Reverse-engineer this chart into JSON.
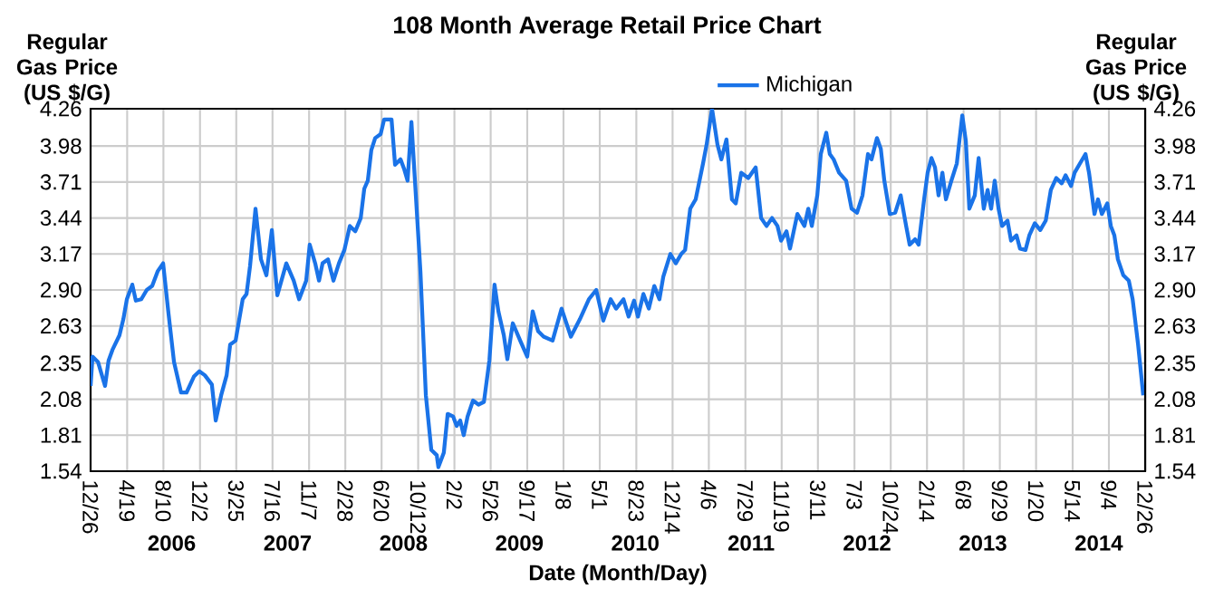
{
  "chart_data": {
    "type": "line",
    "title": "108 Month Average Retail Price Chart",
    "xlabel": "Date (Month/Day)",
    "ylabel": "Regular Gas Price (US $/G)",
    "y2label": "Regular Gas Price (US $/G)",
    "xlim": [
      "2005-12-26",
      "2014-12-26"
    ],
    "xticks": [
      {
        "value": "2005-12-26",
        "label": "12/26"
      },
      {
        "value": "2006-04-19",
        "label": "4/19"
      },
      {
        "value": "2006-08-10",
        "label": "8/10"
      },
      {
        "value": "2006-12-02",
        "label": "12/2"
      },
      {
        "value": "2007-03-25",
        "label": "3/25"
      },
      {
        "value": "2007-07-16",
        "label": "7/16"
      },
      {
        "value": "2007-11-07",
        "label": "11/7"
      },
      {
        "value": "2008-02-28",
        "label": "2/28"
      },
      {
        "value": "2008-06-20",
        "label": "6/20"
      },
      {
        "value": "2008-10-12",
        "label": "10/12"
      },
      {
        "value": "2009-02-02",
        "label": "2/2"
      },
      {
        "value": "2009-05-26",
        "label": "5/26"
      },
      {
        "value": "2009-09-17",
        "label": "9/17"
      },
      {
        "value": "2010-01-08",
        "label": "1/8"
      },
      {
        "value": "2010-05-01",
        "label": "5/1"
      },
      {
        "value": "2010-08-23",
        "label": "8/23"
      },
      {
        "value": "2010-12-14",
        "label": "12/14"
      },
      {
        "value": "2011-04-06",
        "label": "4/6"
      },
      {
        "value": "2011-07-29",
        "label": "7/29"
      },
      {
        "value": "2011-11-19",
        "label": "11/19"
      },
      {
        "value": "2012-03-11",
        "label": "3/11"
      },
      {
        "value": "2012-07-03",
        "label": "7/3"
      },
      {
        "value": "2012-10-24",
        "label": "10/24"
      },
      {
        "value": "2013-02-14",
        "label": "2/14"
      },
      {
        "value": "2013-06-08",
        "label": "6/8"
      },
      {
        "value": "2013-09-29",
        "label": "9/29"
      },
      {
        "value": "2014-01-20",
        "label": "1/20"
      },
      {
        "value": "2014-05-14",
        "label": "5/14"
      },
      {
        "value": "2014-09-04",
        "label": "9/4"
      },
      {
        "value": "2014-12-26",
        "label": "12/26"
      }
    ],
    "ylim": [
      1.54,
      4.26
    ],
    "yticks": [
      1.54,
      1.81,
      2.08,
      2.35,
      2.63,
      {
        "value": 2.9,
        "label": "2.90"
      },
      3.17,
      3.44,
      3.71,
      3.98,
      4.26
    ],
    "y2lim": [
      1.54,
      4.26
    ],
    "y2ticks": [
      1.54,
      1.81,
      2.08,
      2.35,
      2.63,
      {
        "value": 2.9,
        "label": "2.90"
      },
      3.17,
      3.44,
      3.71,
      3.98,
      4.26
    ],
    "annotations": [
      "2006",
      "2007",
      "2008",
      "2009",
      "2010",
      "2011",
      "2012",
      "2013",
      "2014"
    ],
    "grid": true,
    "legend": "top",
    "marker": "none",
    "line_style": "solid",
    "x": [
      "2005-12-26",
      "2006-01-01",
      "2006-01-18",
      "2006-02-09",
      "2006-02-20",
      "2006-03-04",
      "2006-03-26",
      "2006-04-07",
      "2006-04-18",
      "2006-05-05",
      "2006-05-16",
      "2006-06-02",
      "2006-06-19",
      "2006-07-06",
      "2006-07-23",
      "2006-08-09",
      "2006-08-26",
      "2006-09-12",
      "2006-10-04",
      "2006-10-21",
      "2006-11-13",
      "2006-11-30",
      "2006-12-17",
      "2007-01-08",
      "2007-01-20",
      "2007-02-06",
      "2007-02-23",
      "2007-03-06",
      "2007-03-23",
      "2007-04-14",
      "2007-04-26",
      "2007-05-07",
      "2007-05-24",
      "2007-06-10",
      "2007-06-27",
      "2007-07-14",
      "2007-07-31",
      "2007-08-28",
      "2007-09-20",
      "2007-10-07",
      "2007-10-29",
      "2007-11-09",
      "2007-11-26",
      "2007-12-08",
      "2007-12-19",
      "2008-01-05",
      "2008-01-22",
      "2008-02-08",
      "2008-02-25",
      "2008-03-13",
      "2008-03-30",
      "2008-04-16",
      "2008-04-27",
      "2008-05-08",
      "2008-05-19",
      "2008-05-31",
      "2008-06-17",
      "2008-06-28",
      "2008-07-21",
      "2008-08-01",
      "2008-08-18",
      "2008-08-29",
      "2008-09-09",
      "2008-09-21",
      "2008-10-02",
      "2008-10-19",
      "2008-11-05",
      "2008-11-22",
      "2008-12-09",
      "2008-12-14",
      "2008-12-31",
      "2009-01-12",
      "2009-01-29",
      "2009-02-09",
      "2009-02-20",
      "2009-03-03",
      "2009-03-15",
      "2009-04-01",
      "2009-04-18",
      "2009-05-05",
      "2009-05-22",
      "2009-06-07",
      "2009-06-19",
      "2009-07-06",
      "2009-07-17",
      "2009-08-03",
      "2009-08-26",
      "2009-09-17",
      "2009-10-04",
      "2009-10-21",
      "2009-11-07",
      "2009-12-05",
      "2010-01-02",
      "2010-01-31",
      "2010-02-28",
      "2010-03-28",
      "2010-04-20",
      "2010-05-12",
      "2010-06-04",
      "2010-06-21",
      "2010-07-14",
      "2010-07-30",
      "2010-08-16",
      "2010-08-28",
      "2010-09-14",
      "2010-10-01",
      "2010-10-18",
      "2010-11-03",
      "2010-11-15",
      "2010-12-07",
      "2010-12-24",
      "2011-01-10",
      "2011-01-22",
      "2011-02-07",
      "2011-02-24",
      "2011-03-19",
      "2011-03-30",
      "2011-04-16",
      "2011-05-03",
      "2011-05-15",
      "2011-05-31",
      "2011-06-17",
      "2011-06-29",
      "2011-07-16",
      "2011-08-07",
      "2011-08-30",
      "2011-09-16",
      "2011-10-03",
      "2011-10-20",
      "2011-11-06",
      "2011-11-17",
      "2011-12-04",
      "2011-12-15",
      "2012-01-07",
      "2012-01-29",
      "2012-02-10",
      "2012-02-21",
      "2012-03-09",
      "2012-03-20",
      "2012-04-06",
      "2012-04-17",
      "2012-04-29",
      "2012-05-16",
      "2012-06-07",
      "2012-06-24",
      "2012-07-11",
      "2012-07-28",
      "2012-08-14",
      "2012-08-25",
      "2012-09-11",
      "2012-09-23",
      "2012-10-04",
      "2012-10-21",
      "2012-11-07",
      "2012-11-24",
      "2012-12-11",
      "2012-12-22",
      "2013-01-08",
      "2013-01-19",
      "2013-02-05",
      "2013-02-16",
      "2013-02-28",
      "2013-03-11",
      "2013-03-22",
      "2013-04-03",
      "2013-04-14",
      "2013-05-01",
      "2013-05-18",
      "2013-06-04",
      "2013-06-15",
      "2013-06-26",
      "2013-07-13",
      "2013-07-25",
      "2013-08-10",
      "2013-08-22",
      "2013-09-02",
      "2013-09-13",
      "2013-09-25",
      "2013-10-06",
      "2013-10-23",
      "2013-11-03",
      "2013-11-20",
      "2013-12-01",
      "2013-12-18",
      "2013-12-30",
      "2014-01-16",
      "2014-02-02",
      "2014-02-19",
      "2014-03-07",
      "2014-03-24",
      "2014-04-10",
      "2014-04-22",
      "2014-05-09",
      "2014-05-20",
      "2014-06-06",
      "2014-06-23",
      "2014-07-04",
      "2014-07-21",
      "2014-08-01",
      "2014-08-13",
      "2014-08-30",
      "2014-09-10",
      "2014-09-21",
      "2014-10-02",
      "2014-10-19",
      "2014-11-05",
      "2014-11-17",
      "2014-12-04",
      "2014-12-20"
    ],
    "series": [
      {
        "name": "Michigan",
        "color": "#1a73e8",
        "values": [
          2.18,
          2.4,
          2.36,
          2.18,
          2.37,
          2.45,
          2.56,
          2.68,
          2.83,
          2.94,
          2.82,
          2.83,
          2.9,
          2.93,
          3.04,
          3.1,
          2.72,
          2.36,
          2.13,
          2.13,
          2.25,
          2.29,
          2.26,
          2.19,
          1.92,
          2.11,
          2.26,
          2.49,
          2.52,
          2.83,
          2.87,
          3.08,
          3.51,
          3.13,
          3.01,
          3.35,
          2.86,
          3.1,
          2.97,
          2.83,
          2.97,
          3.24,
          3.1,
          2.97,
          3.1,
          3.13,
          2.97,
          3.1,
          3.2,
          3.38,
          3.34,
          3.44,
          3.66,
          3.72,
          3.95,
          4.04,
          4.07,
          4.18,
          4.18,
          3.84,
          3.88,
          3.81,
          3.72,
          4.16,
          3.72,
          3.04,
          2.11,
          1.7,
          1.66,
          1.57,
          1.68,
          1.97,
          1.95,
          1.88,
          1.92,
          1.81,
          1.95,
          2.07,
          2.04,
          2.06,
          2.37,
          2.94,
          2.74,
          2.56,
          2.38,
          2.65,
          2.52,
          2.4,
          2.74,
          2.59,
          2.55,
          2.52,
          2.76,
          2.55,
          2.68,
          2.83,
          2.9,
          2.67,
          2.83,
          2.76,
          2.83,
          2.7,
          2.82,
          2.7,
          2.87,
          2.76,
          2.93,
          2.83,
          3.0,
          3.17,
          3.1,
          3.17,
          3.2,
          3.51,
          3.58,
          3.85,
          3.99,
          4.26,
          3.99,
          3.88,
          4.03,
          3.58,
          3.55,
          3.78,
          3.74,
          3.82,
          3.44,
          3.38,
          3.44,
          3.38,
          3.27,
          3.34,
          3.21,
          3.47,
          3.38,
          3.51,
          3.38,
          3.61,
          3.92,
          4.08,
          3.92,
          3.88,
          3.78,
          3.72,
          3.51,
          3.48,
          3.61,
          3.92,
          3.88,
          4.04,
          3.96,
          3.72,
          3.47,
          3.48,
          3.61,
          3.38,
          3.24,
          3.28,
          3.24,
          3.58,
          3.78,
          3.89,
          3.82,
          3.61,
          3.78,
          3.58,
          3.72,
          3.85,
          4.21,
          4.02,
          3.51,
          3.61,
          3.89,
          3.51,
          3.65,
          3.51,
          3.72,
          3.51,
          3.38,
          3.42,
          3.27,
          3.31,
          3.21,
          3.2,
          3.31,
          3.4,
          3.35,
          3.42,
          3.65,
          3.74,
          3.7,
          3.76,
          3.68,
          3.78,
          3.85,
          3.92,
          3.78,
          3.47,
          3.58,
          3.47,
          3.55,
          3.38,
          3.31,
          3.13,
          3.01,
          2.97,
          2.83,
          2.49,
          2.11
        ]
      }
    ]
  }
}
